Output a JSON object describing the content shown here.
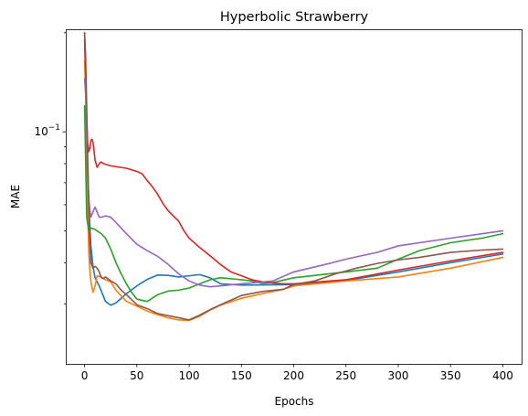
{
  "chart_data": {
    "type": "line",
    "title": "Hyperbolic Strawberry",
    "xlabel": "Epochs",
    "ylabel": "MAE",
    "xlim": [
      -18,
      418
    ],
    "ylim": [
      0.0197,
      0.205
    ],
    "yscale": "log",
    "grid": false,
    "xticks": [
      0,
      50,
      100,
      150,
      200,
      250,
      300,
      350,
      400
    ],
    "ytick_major": [
      {
        "value": 0.1,
        "label": "10",
        "exp": "−1"
      }
    ],
    "ytick_minor": [
      0.03,
      0.04,
      0.05,
      0.06,
      0.07,
      0.08,
      0.09,
      0.2
    ],
    "series": [
      {
        "color": "#1f77b4",
        "points": [
          [
            0,
            0.19
          ],
          [
            2,
            0.11
          ],
          [
            4,
            0.06
          ],
          [
            6,
            0.045
          ],
          [
            8,
            0.039
          ],
          [
            10,
            0.036
          ],
          [
            14,
            0.034
          ],
          [
            20,
            0.0305
          ],
          [
            25,
            0.0297
          ],
          [
            30,
            0.0302
          ],
          [
            40,
            0.0322
          ],
          [
            50,
            0.034
          ],
          [
            60,
            0.0356
          ],
          [
            70,
            0.0367
          ],
          [
            80,
            0.0366
          ],
          [
            90,
            0.0362
          ],
          [
            100,
            0.0365
          ],
          [
            110,
            0.0368
          ],
          [
            120,
            0.036
          ],
          [
            130,
            0.0345
          ],
          [
            150,
            0.0342
          ],
          [
            200,
            0.0343
          ],
          [
            250,
            0.0353
          ],
          [
            300,
            0.0375
          ],
          [
            350,
            0.04
          ],
          [
            400,
            0.0425
          ]
        ]
      },
      {
        "color": "#ff7f0e",
        "points": [
          [
            0,
            0.165
          ],
          [
            1,
            0.13
          ],
          [
            2,
            0.085
          ],
          [
            3,
            0.06
          ],
          [
            4,
            0.043
          ],
          [
            5,
            0.038
          ],
          [
            6,
            0.035
          ],
          [
            8,
            0.0325
          ],
          [
            10,
            0.034
          ],
          [
            12,
            0.0365
          ],
          [
            16,
            0.0362
          ],
          [
            20,
            0.0355
          ],
          [
            25,
            0.035
          ],
          [
            30,
            0.033
          ],
          [
            40,
            0.0305
          ],
          [
            50,
            0.0295
          ],
          [
            60,
            0.0285
          ],
          [
            70,
            0.0278
          ],
          [
            80,
            0.0272
          ],
          [
            90,
            0.0268
          ],
          [
            100,
            0.0267
          ],
          [
            110,
            0.0275
          ],
          [
            120,
            0.0287
          ],
          [
            130,
            0.0297
          ],
          [
            150,
            0.0312
          ],
          [
            170,
            0.0322
          ],
          [
            190,
            0.0332
          ],
          [
            200,
            0.034
          ],
          [
            250,
            0.0352
          ],
          [
            300,
            0.0362
          ],
          [
            350,
            0.0385
          ],
          [
            400,
            0.0415
          ]
        ]
      },
      {
        "color": "#2ca02c",
        "points": [
          [
            0,
            0.12
          ],
          [
            2,
            0.055
          ],
          [
            4,
            0.05
          ],
          [
            6,
            0.051
          ],
          [
            10,
            0.0505
          ],
          [
            16,
            0.049
          ],
          [
            20,
            0.0475
          ],
          [
            25,
            0.044
          ],
          [
            30,
            0.04
          ],
          [
            35,
            0.037
          ],
          [
            40,
            0.0345
          ],
          [
            45,
            0.0325
          ],
          [
            50,
            0.031
          ],
          [
            60,
            0.0305
          ],
          [
            70,
            0.032
          ],
          [
            80,
            0.0328
          ],
          [
            90,
            0.033
          ],
          [
            100,
            0.0335
          ],
          [
            110,
            0.0345
          ],
          [
            120,
            0.0355
          ],
          [
            130,
            0.036
          ],
          [
            150,
            0.0355
          ],
          [
            160,
            0.0352
          ],
          [
            170,
            0.0346
          ],
          [
            180,
            0.0348
          ],
          [
            200,
            0.036
          ],
          [
            250,
            0.0375
          ],
          [
            280,
            0.0385
          ],
          [
            300,
            0.041
          ],
          [
            320,
            0.0435
          ],
          [
            350,
            0.046
          ],
          [
            380,
            0.0475
          ],
          [
            400,
            0.049
          ]
        ]
      },
      {
        "color": "#d62728",
        "points": [
          [
            0,
            0.2
          ],
          [
            1,
            0.15
          ],
          [
            2,
            0.11
          ],
          [
            3,
            0.092
          ],
          [
            4,
            0.087
          ],
          [
            5,
            0.089
          ],
          [
            6,
            0.094
          ],
          [
            7,
            0.095
          ],
          [
            8,
            0.093
          ],
          [
            9,
            0.088
          ],
          [
            10,
            0.082
          ],
          [
            12,
            0.078
          ],
          [
            14,
            0.08
          ],
          [
            16,
            0.081
          ],
          [
            18,
            0.08
          ],
          [
            25,
            0.0788
          ],
          [
            40,
            0.0775
          ],
          [
            50,
            0.0758
          ],
          [
            55,
            0.0745
          ],
          [
            60,
            0.071
          ],
          [
            65,
            0.068
          ],
          [
            70,
            0.0645
          ],
          [
            75,
            0.0605
          ],
          [
            80,
            0.0575
          ],
          [
            90,
            0.0535
          ],
          [
            95,
            0.05
          ],
          [
            100,
            0.0475
          ],
          [
            110,
            0.0445
          ],
          [
            120,
            0.042
          ],
          [
            130,
            0.0395
          ],
          [
            140,
            0.0375
          ],
          [
            150,
            0.0365
          ],
          [
            160,
            0.0355
          ],
          [
            170,
            0.035
          ],
          [
            180,
            0.0347
          ],
          [
            190,
            0.0345
          ],
          [
            200,
            0.0345
          ],
          [
            250,
            0.0355
          ],
          [
            300,
            0.038
          ],
          [
            350,
            0.0405
          ],
          [
            400,
            0.043
          ]
        ]
      },
      {
        "color": "#9467bd",
        "points": [
          [
            0,
            0.145
          ],
          [
            1,
            0.13
          ],
          [
            2,
            0.1
          ],
          [
            3,
            0.075
          ],
          [
            4,
            0.063
          ],
          [
            5,
            0.058
          ],
          [
            6,
            0.055
          ],
          [
            8,
            0.057
          ],
          [
            10,
            0.059
          ],
          [
            12,
            0.057
          ],
          [
            14,
            0.055
          ],
          [
            16,
            0.055
          ],
          [
            20,
            0.0555
          ],
          [
            25,
            0.055
          ],
          [
            30,
            0.053
          ],
          [
            40,
            0.049
          ],
          [
            50,
            0.0455
          ],
          [
            60,
            0.0435
          ],
          [
            70,
            0.0418
          ],
          [
            80,
            0.0395
          ],
          [
            90,
            0.037
          ],
          [
            100,
            0.0352
          ],
          [
            110,
            0.0342
          ],
          [
            120,
            0.0338
          ],
          [
            130,
            0.034
          ],
          [
            150,
            0.0345
          ],
          [
            180,
            0.0352
          ],
          [
            200,
            0.0375
          ],
          [
            230,
            0.0395
          ],
          [
            250,
            0.041
          ],
          [
            280,
            0.043
          ],
          [
            300,
            0.045
          ],
          [
            350,
            0.0475
          ],
          [
            400,
            0.05
          ]
        ]
      },
      {
        "color": "#8c564b",
        "points": [
          [
            0,
            0.2
          ],
          [
            1,
            0.17
          ],
          [
            2,
            0.12
          ],
          [
            3,
            0.08
          ],
          [
            4,
            0.06
          ],
          [
            5,
            0.046
          ],
          [
            6,
            0.04
          ],
          [
            8,
            0.0385
          ],
          [
            10,
            0.039
          ],
          [
            12,
            0.0385
          ],
          [
            14,
            0.0375
          ],
          [
            16,
            0.036
          ],
          [
            18,
            0.0358
          ],
          [
            20,
            0.0362
          ],
          [
            25,
            0.0352
          ],
          [
            30,
            0.0345
          ],
          [
            35,
            0.033
          ],
          [
            40,
            0.032
          ],
          [
            50,
            0.0298
          ],
          [
            60,
            0.029
          ],
          [
            70,
            0.028
          ],
          [
            80,
            0.0276
          ],
          [
            90,
            0.0272
          ],
          [
            100,
            0.0268
          ],
          [
            110,
            0.0277
          ],
          [
            120,
            0.0288
          ],
          [
            130,
            0.0298
          ],
          [
            150,
            0.0318
          ],
          [
            170,
            0.0327
          ],
          [
            190,
            0.0332
          ],
          [
            200,
            0.0343
          ],
          [
            220,
            0.0352
          ],
          [
            240,
            0.037
          ],
          [
            260,
            0.0385
          ],
          [
            280,
            0.0398
          ],
          [
            300,
            0.0408
          ],
          [
            320,
            0.0415
          ],
          [
            350,
            0.043
          ],
          [
            380,
            0.0437
          ],
          [
            400,
            0.044
          ]
        ]
      }
    ]
  }
}
